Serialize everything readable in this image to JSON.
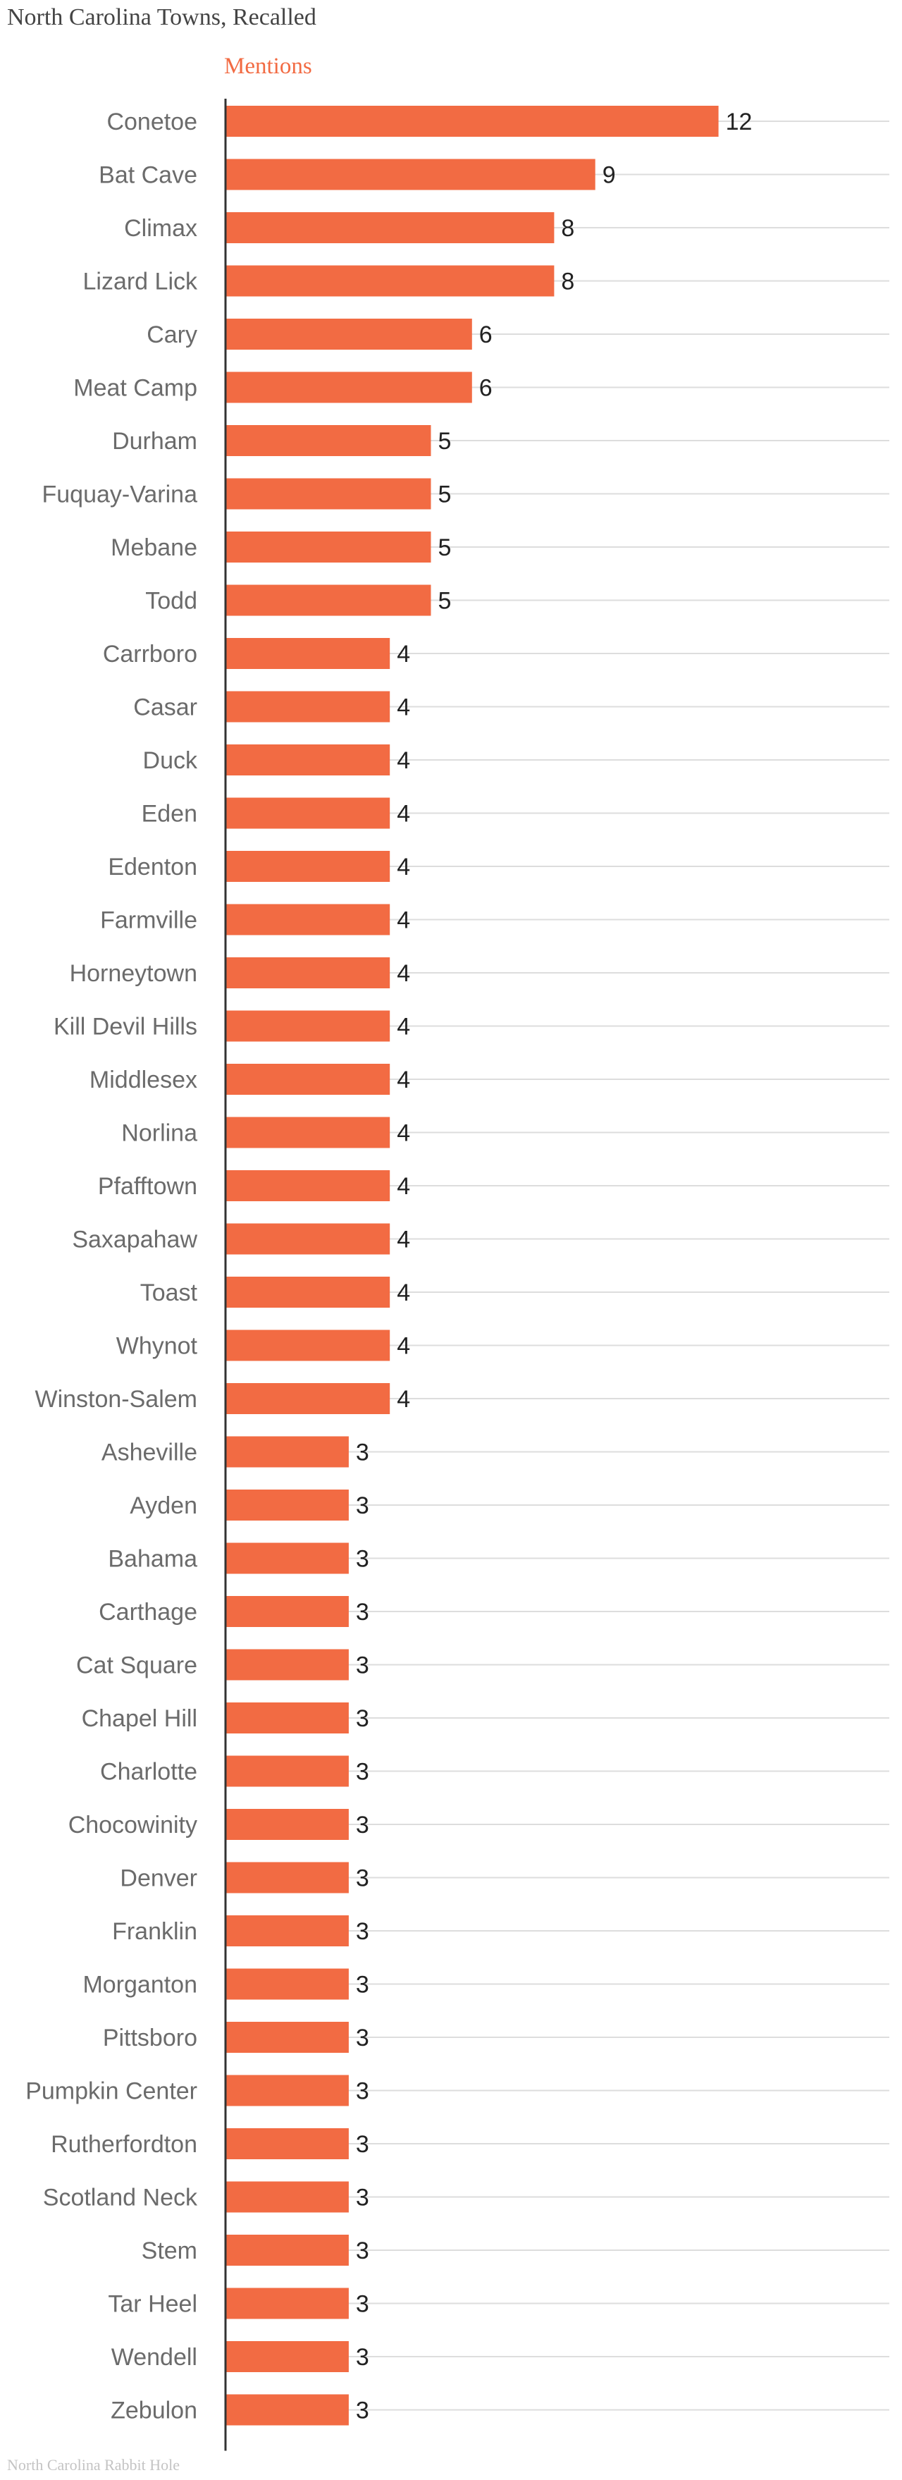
{
  "header": {
    "title": "North Carolina Towns, Recalled"
  },
  "footer": {
    "source": "North Carolina Rabbit Hole"
  },
  "colors": {
    "bar": "#f26b43",
    "series_label": "#f26b43",
    "gridline": "#dddddd",
    "axis": "#333333"
  },
  "chart_data": {
    "type": "bar",
    "orientation": "horizontal",
    "title": "North Carolina Towns, Recalled",
    "grid": true,
    "xlim": [
      0,
      12
    ],
    "categories": [
      "Conetoe",
      "Bat Cave",
      "Climax",
      "Lizard Lick",
      "Cary",
      "Meat Camp",
      "Durham",
      "Fuquay-Varina",
      "Mebane",
      "Todd",
      "Carrboro",
      "Casar",
      "Duck",
      "Eden",
      "Edenton",
      "Farmville",
      "Horneytown",
      "Kill Devil Hills",
      "Middlesex",
      "Norlina",
      "Pfafftown",
      "Saxapahaw",
      "Toast",
      "Whynot",
      "Winston-Salem",
      "Asheville",
      "Ayden",
      "Bahama",
      "Carthage",
      "Cat Square",
      "Chapel Hill",
      "Charlotte",
      "Chocowinity",
      "Denver",
      "Franklin",
      "Morganton",
      "Pittsboro",
      "Pumpkin Center",
      "Rutherfordton",
      "Scotland Neck",
      "Stem",
      "Tar Heel",
      "Wendell",
      "Zebulon"
    ],
    "series": [
      {
        "name": "Mentions",
        "values": [
          12,
          9,
          8,
          8,
          6,
          6,
          5,
          5,
          5,
          5,
          4,
          4,
          4,
          4,
          4,
          4,
          4,
          4,
          4,
          4,
          4,
          4,
          4,
          4,
          4,
          3,
          3,
          3,
          3,
          3,
          3,
          3,
          3,
          3,
          3,
          3,
          3,
          3,
          3,
          3,
          3,
          3,
          3,
          3
        ]
      }
    ]
  }
}
